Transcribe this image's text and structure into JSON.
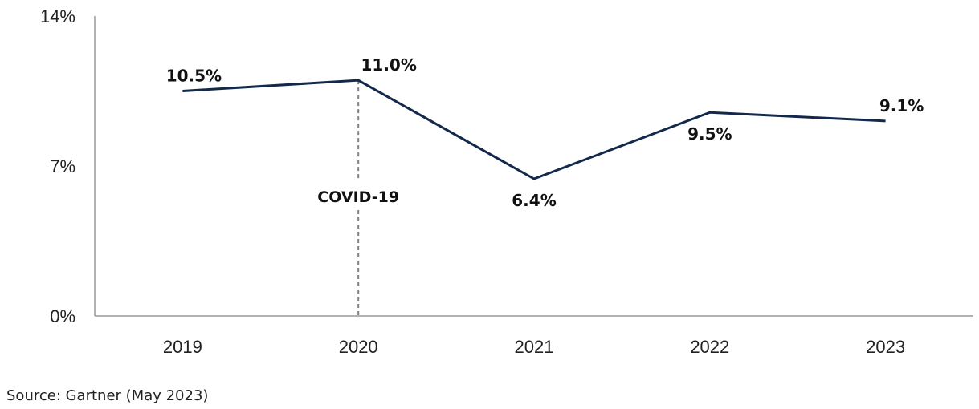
{
  "chart_data": {
    "type": "line",
    "title": "",
    "xlabel": "",
    "ylabel": "",
    "categories": [
      "2019",
      "2020",
      "2021",
      "2022",
      "2023"
    ],
    "series": [
      {
        "values": [
          10.5,
          11.0,
          6.4,
          9.5,
          9.1
        ],
        "color": "#13294b"
      }
    ],
    "data_labels": [
      "10.5%",
      "11.0%",
      "6.4%",
      "9.5%",
      "9.1%"
    ],
    "ylim": [
      0,
      14
    ],
    "yticks": [
      0,
      7,
      14
    ],
    "ytick_labels": [
      "0%",
      "7%",
      "14%"
    ],
    "grid": false,
    "legend": "none",
    "annotation": {
      "text": "COVID-19",
      "category": "2020",
      "style": "dashed vertical line",
      "color": "#808080"
    }
  },
  "source": "Source: Gartner (May 2023)"
}
